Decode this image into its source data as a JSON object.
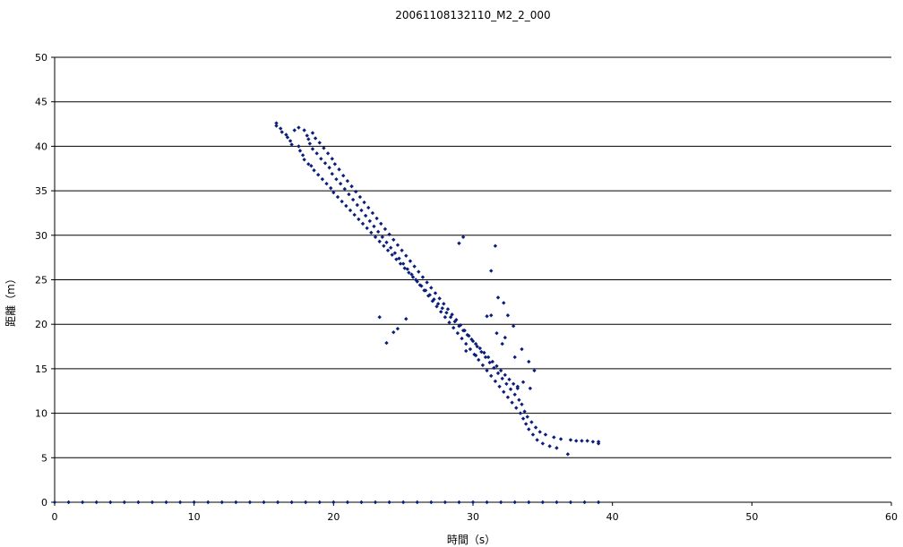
{
  "chart_data": {
    "type": "scatter",
    "title": "20061108132110_M2_2_000",
    "xlabel": "時間（s）",
    "ylabel": "距離（m）",
    "xlim": [
      0,
      60
    ],
    "ylim": [
      0,
      50
    ],
    "x_ticks": [
      0,
      10,
      20,
      30,
      40,
      50,
      60
    ],
    "y_ticks": [
      0,
      5,
      10,
      15,
      20,
      25,
      30,
      35,
      40,
      45,
      50
    ],
    "grid": "horizontal",
    "legend": "none",
    "marker_color": "#0a1e7a",
    "series": [
      {
        "points": [
          [
            15.9,
            42.6
          ],
          [
            15.9,
            42.3
          ],
          [
            16.2,
            42.0
          ],
          [
            16.3,
            41.6
          ],
          [
            16.6,
            41.3
          ],
          [
            16.7,
            41.0
          ],
          [
            16.9,
            40.6
          ],
          [
            17.0,
            40.2
          ],
          [
            17.2,
            41.8
          ],
          [
            17.5,
            42.1
          ],
          [
            17.5,
            40.0
          ],
          [
            17.6,
            39.5
          ],
          [
            17.8,
            39.0
          ],
          [
            17.9,
            41.8
          ],
          [
            17.9,
            38.5
          ],
          [
            18.1,
            41.2
          ],
          [
            18.2,
            40.8
          ],
          [
            18.2,
            38.0
          ],
          [
            18.3,
            40.3
          ],
          [
            18.4,
            37.8
          ],
          [
            18.5,
            41.5
          ],
          [
            18.5,
            39.7
          ],
          [
            18.6,
            37.3
          ],
          [
            18.7,
            40.9
          ],
          [
            18.8,
            39.2
          ],
          [
            18.9,
            36.8
          ],
          [
            19.0,
            40.4
          ],
          [
            19.1,
            38.6
          ],
          [
            19.2,
            36.3
          ],
          [
            19.3,
            39.8
          ],
          [
            19.4,
            38.1
          ],
          [
            19.5,
            35.8
          ],
          [
            19.6,
            39.2
          ],
          [
            19.7,
            37.6
          ],
          [
            19.8,
            35.3
          ],
          [
            19.9,
            38.6
          ],
          [
            19.9,
            36.9
          ],
          [
            20.0,
            34.8
          ],
          [
            20.1,
            38.0
          ],
          [
            20.2,
            36.3
          ],
          [
            20.3,
            34.3
          ],
          [
            20.4,
            37.4
          ],
          [
            20.5,
            35.8
          ],
          [
            20.6,
            33.8
          ],
          [
            20.7,
            36.7
          ],
          [
            20.8,
            35.2
          ],
          [
            20.9,
            33.3
          ],
          [
            21.0,
            36.1
          ],
          [
            21.1,
            34.6
          ],
          [
            21.2,
            32.8
          ],
          [
            21.3,
            35.5
          ],
          [
            21.4,
            34.0
          ],
          [
            21.5,
            32.3
          ],
          [
            21.6,
            34.9
          ],
          [
            21.7,
            33.4
          ],
          [
            21.8,
            31.8
          ],
          [
            21.9,
            34.3
          ],
          [
            22.0,
            32.8
          ],
          [
            22.1,
            31.3
          ],
          [
            22.2,
            33.7
          ],
          [
            22.3,
            32.2
          ],
          [
            22.4,
            30.8
          ],
          [
            22.5,
            33.1
          ],
          [
            22.6,
            31.6
          ],
          [
            22.7,
            30.3
          ],
          [
            22.8,
            32.5
          ],
          [
            22.9,
            31.0
          ],
          [
            23.0,
            29.8
          ],
          [
            23.1,
            31.9
          ],
          [
            23.2,
            30.4
          ],
          [
            23.3,
            29.3
          ],
          [
            23.4,
            31.3
          ],
          [
            23.5,
            29.8
          ],
          [
            23.6,
            28.8
          ],
          [
            23.7,
            30.7
          ],
          [
            23.8,
            29.2
          ],
          [
            23.9,
            28.3
          ],
          [
            24.0,
            30.1
          ],
          [
            24.1,
            28.6
          ],
          [
            24.2,
            27.8
          ],
          [
            24.3,
            29.5
          ],
          [
            24.4,
            28.0
          ],
          [
            24.5,
            27.3
          ],
          [
            24.6,
            28.9
          ],
          [
            24.7,
            27.4
          ],
          [
            24.8,
            26.8
          ],
          [
            24.9,
            28.3
          ],
          [
            25.0,
            26.8
          ],
          [
            25.1,
            26.3
          ],
          [
            25.2,
            27.7
          ],
          [
            25.3,
            26.2
          ],
          [
            25.4,
            25.8
          ],
          [
            25.5,
            27.1
          ],
          [
            25.6,
            25.6
          ],
          [
            25.7,
            25.3
          ],
          [
            25.8,
            26.5
          ],
          [
            25.9,
            25.0
          ],
          [
            26.0,
            24.8
          ],
          [
            26.1,
            25.9
          ],
          [
            26.2,
            24.4
          ],
          [
            26.3,
            24.3
          ],
          [
            26.4,
            25.3
          ],
          [
            26.5,
            23.8
          ],
          [
            26.6,
            23.8
          ],
          [
            26.7,
            24.7
          ],
          [
            26.8,
            23.2
          ],
          [
            26.9,
            23.3
          ],
          [
            27.0,
            24.1
          ],
          [
            27.1,
            22.6
          ],
          [
            27.2,
            22.8
          ],
          [
            27.3,
            23.5
          ],
          [
            27.4,
            22.0
          ],
          [
            27.5,
            22.3
          ],
          [
            27.6,
            22.9
          ],
          [
            27.7,
            21.4
          ],
          [
            27.8,
            21.8
          ],
          [
            27.9,
            22.3
          ],
          [
            28.0,
            20.8
          ],
          [
            28.1,
            21.3
          ],
          [
            28.2,
            21.7
          ],
          [
            28.3,
            20.2
          ],
          [
            28.4,
            20.8
          ],
          [
            28.5,
            21.1
          ],
          [
            28.6,
            19.6
          ],
          [
            28.7,
            20.3
          ],
          [
            28.8,
            20.5
          ],
          [
            28.9,
            19.0
          ],
          [
            29.0,
            19.8
          ],
          [
            29.1,
            19.9
          ],
          [
            29.2,
            18.4
          ],
          [
            29.3,
            19.3
          ],
          [
            29.4,
            19.3
          ],
          [
            29.5,
            17.8
          ],
          [
            29.6,
            18.8
          ],
          [
            29.7,
            18.7
          ],
          [
            29.8,
            17.2
          ],
          [
            29.9,
            18.3
          ],
          [
            30.0,
            18.1
          ],
          [
            30.1,
            16.6
          ],
          [
            30.2,
            17.8
          ],
          [
            30.3,
            17.5
          ],
          [
            30.4,
            16.0
          ],
          [
            30.5,
            17.3
          ],
          [
            30.6,
            16.9
          ],
          [
            30.7,
            15.4
          ],
          [
            30.8,
            16.8
          ],
          [
            30.9,
            16.3
          ],
          [
            31.0,
            14.8
          ],
          [
            31.1,
            16.3
          ],
          [
            31.2,
            15.7
          ],
          [
            31.3,
            14.2
          ],
          [
            31.4,
            15.8
          ],
          [
            31.5,
            15.1
          ],
          [
            31.6,
            13.6
          ],
          [
            31.7,
            15.3
          ],
          [
            31.8,
            14.5
          ],
          [
            31.9,
            13.0
          ],
          [
            32.0,
            14.8
          ],
          [
            32.1,
            13.9
          ],
          [
            32.2,
            12.4
          ],
          [
            32.3,
            14.3
          ],
          [
            32.4,
            13.3
          ],
          [
            32.5,
            11.8
          ],
          [
            32.6,
            13.8
          ],
          [
            32.7,
            12.7
          ],
          [
            32.8,
            11.2
          ],
          [
            32.9,
            13.3
          ],
          [
            33.0,
            12.1
          ],
          [
            33.1,
            10.6
          ],
          [
            33.2,
            12.8
          ],
          [
            33.3,
            11.5
          ],
          [
            33.4,
            10.0
          ],
          [
            33.5,
            11.0
          ],
          [
            33.6,
            9.4
          ],
          [
            33.7,
            10.2
          ],
          [
            33.8,
            8.8
          ],
          [
            33.9,
            9.6
          ],
          [
            34.0,
            8.2
          ],
          [
            34.2,
            9.0
          ],
          [
            34.3,
            7.6
          ],
          [
            34.5,
            8.4
          ],
          [
            34.6,
            7.0
          ],
          [
            34.8,
            7.9
          ],
          [
            35.0,
            6.6
          ],
          [
            35.2,
            7.6
          ],
          [
            35.5,
            6.3
          ],
          [
            35.8,
            7.3
          ],
          [
            36.0,
            6.1
          ],
          [
            36.3,
            7.1
          ],
          [
            36.8,
            5.4
          ],
          [
            37.0,
            7.0
          ],
          [
            37.4,
            6.9
          ],
          [
            37.8,
            6.9
          ],
          [
            38.2,
            6.9
          ],
          [
            38.6,
            6.8
          ],
          [
            39.0,
            6.8
          ],
          [
            39.0,
            6.6
          ],
          [
            29.0,
            29.1
          ],
          [
            29.3,
            29.8
          ],
          [
            31.3,
            26.0
          ],
          [
            31.6,
            28.8
          ],
          [
            31.8,
            23.0
          ],
          [
            32.2,
            22.4
          ],
          [
            32.5,
            21.0
          ],
          [
            32.9,
            19.8
          ],
          [
            31.3,
            21.0
          ],
          [
            31.7,
            19.0
          ],
          [
            32.3,
            18.5
          ],
          [
            33.0,
            16.3
          ],
          [
            33.5,
            17.2
          ],
          [
            34.0,
            15.8
          ],
          [
            34.4,
            14.8
          ],
          [
            23.3,
            20.8
          ],
          [
            23.8,
            17.9
          ],
          [
            24.3,
            19.1
          ],
          [
            24.6,
            19.5
          ],
          [
            25.2,
            20.6
          ],
          [
            29.5,
            17.0
          ],
          [
            30.2,
            16.5
          ],
          [
            33.2,
            13.0
          ],
          [
            33.6,
            13.5
          ],
          [
            34.1,
            12.8
          ],
          [
            31.0,
            20.9
          ],
          [
            32.1,
            17.8
          ]
        ]
      },
      {
        "points": [
          [
            0,
            0
          ],
          [
            1,
            0
          ],
          [
            2,
            0
          ],
          [
            3,
            0
          ],
          [
            4,
            0
          ],
          [
            5,
            0
          ],
          [
            6,
            0
          ],
          [
            7,
            0
          ],
          [
            8,
            0
          ],
          [
            9,
            0
          ],
          [
            10,
            0
          ],
          [
            11,
            0
          ],
          [
            12,
            0
          ],
          [
            13,
            0
          ],
          [
            14,
            0
          ],
          [
            15,
            0
          ],
          [
            16,
            0
          ],
          [
            17,
            0
          ],
          [
            18,
            0
          ],
          [
            19,
            0
          ],
          [
            20,
            0
          ],
          [
            21,
            0
          ],
          [
            22,
            0
          ],
          [
            23,
            0
          ],
          [
            24,
            0
          ],
          [
            25,
            0
          ],
          [
            26,
            0
          ],
          [
            27,
            0
          ],
          [
            28,
            0
          ],
          [
            29,
            0
          ],
          [
            30,
            0
          ],
          [
            31,
            0
          ],
          [
            32,
            0
          ],
          [
            33,
            0
          ],
          [
            34,
            0
          ],
          [
            35,
            0
          ],
          [
            36,
            0
          ],
          [
            37,
            0
          ],
          [
            38,
            0
          ],
          [
            39,
            0
          ]
        ]
      }
    ]
  }
}
